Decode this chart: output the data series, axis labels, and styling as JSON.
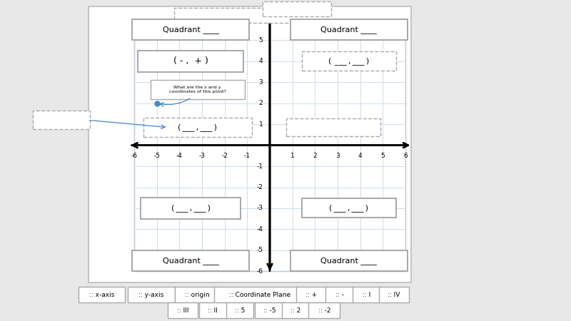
{
  "bg_color": "#e8e8e8",
  "panel_bg": "#ffffff",
  "grid_color": "#c8d8e8",
  "x_range": [
    -6,
    6
  ],
  "y_range": [
    -6,
    6
  ],
  "drag_row1": [
    ":: x-axis",
    ":: y-axis",
    ":: origin",
    ":: Coordinate Plane",
    ":: +",
    ":: -",
    ":: I",
    ":: IV"
  ],
  "drag_row2": [
    ":: III",
    ":: II",
    ":: 5",
    ":: -5",
    ":: 2",
    ":: -2"
  ],
  "point_x": -5,
  "point_y": 2,
  "tooltip_text": "What are the x and y\ncoordinates of this point?"
}
